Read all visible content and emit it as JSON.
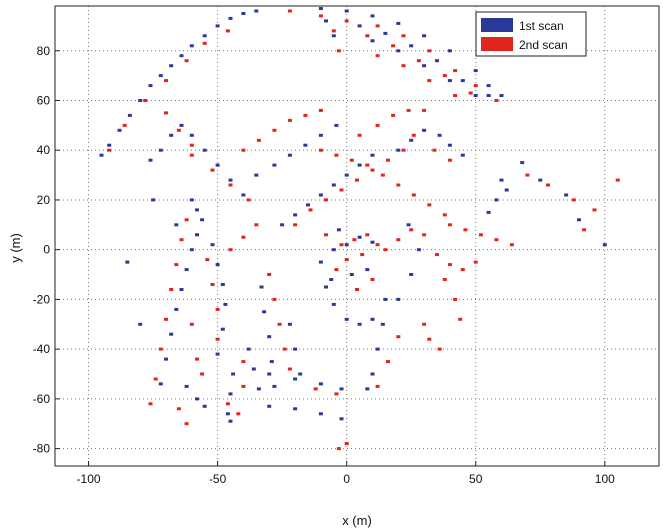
{
  "chart_data": {
    "type": "scatter",
    "title": "",
    "xlabel": "x (m)",
    "ylabel": "y (m)",
    "xlim": [
      -113,
      121
    ],
    "ylim": [
      -87,
      98
    ],
    "xticks": [
      -100,
      -50,
      0,
      50,
      100
    ],
    "yticks": [
      -80,
      -60,
      -40,
      -20,
      0,
      20,
      40,
      60,
      80
    ],
    "grid": true,
    "legend_position": "top-right",
    "colors": {
      "1st scan": "#2b3a9a",
      "2nd scan": "#e2241f"
    },
    "series": [
      {
        "name": "1st scan",
        "values": [
          [
            -95,
            38
          ],
          [
            -92,
            42
          ],
          [
            -88,
            48
          ],
          [
            -84,
            54
          ],
          [
            -80,
            60
          ],
          [
            -76,
            66
          ],
          [
            -72,
            70
          ],
          [
            -68,
            74
          ],
          [
            -64,
            78
          ],
          [
            -60,
            82
          ],
          [
            -55,
            86
          ],
          [
            -50,
            90
          ],
          [
            -45,
            93
          ],
          [
            -40,
            95
          ],
          [
            -35,
            96
          ],
          [
            -10,
            97
          ],
          [
            0,
            96
          ],
          [
            10,
            94
          ],
          [
            20,
            91
          ],
          [
            30,
            86
          ],
          [
            40,
            80
          ],
          [
            50,
            72
          ],
          [
            55,
            66
          ],
          [
            60,
            62
          ],
          [
            -8,
            92
          ],
          [
            5,
            90
          ],
          [
            15,
            87
          ],
          [
            25,
            82
          ],
          [
            35,
            76
          ],
          [
            45,
            68
          ],
          [
            55,
            62
          ],
          [
            -5,
            86
          ],
          [
            10,
            84
          ],
          [
            20,
            80
          ],
          [
            30,
            74
          ],
          [
            40,
            68
          ],
          [
            50,
            62
          ],
          [
            -76,
            36
          ],
          [
            -72,
            40
          ],
          [
            -68,
            46
          ],
          [
            -64,
            50
          ],
          [
            -60,
            46
          ],
          [
            -55,
            40
          ],
          [
            -50,
            34
          ],
          [
            -45,
            28
          ],
          [
            -40,
            22
          ],
          [
            -60,
            20
          ],
          [
            -58,
            16
          ],
          [
            -56,
            12
          ],
          [
            -58,
            6
          ],
          [
            -60,
            0
          ],
          [
            -62,
            -8
          ],
          [
            -64,
            -16
          ],
          [
            -66,
            -24
          ],
          [
            -68,
            -34
          ],
          [
            -70,
            -44
          ],
          [
            -72,
            -54
          ],
          [
            -52,
            2
          ],
          [
            -50,
            -6
          ],
          [
            -48,
            -14
          ],
          [
            -47,
            -22
          ],
          [
            -48,
            -32
          ],
          [
            -50,
            -42
          ],
          [
            -44,
            -50
          ],
          [
            -45,
            -58
          ],
          [
            -46,
            -66
          ],
          [
            -45,
            -69
          ],
          [
            -33,
            -15
          ],
          [
            -32,
            -25
          ],
          [
            -30,
            -35
          ],
          [
            -29,
            -45
          ],
          [
            -28,
            -55
          ],
          [
            -30,
            -50
          ],
          [
            -20,
            -52
          ],
          [
            -10,
            -54
          ],
          [
            -2,
            -56
          ],
          [
            -30,
            -63
          ],
          [
            -20,
            -64
          ],
          [
            -10,
            -66
          ],
          [
            -2,
            -68
          ],
          [
            -22,
            -30
          ],
          [
            -20,
            -40
          ],
          [
            -18,
            -50
          ],
          [
            -10,
            -5
          ],
          [
            -8,
            -15
          ],
          [
            -5,
            -22
          ],
          [
            0,
            -28
          ],
          [
            5,
            -30
          ],
          [
            10,
            -28
          ],
          [
            15,
            -20
          ],
          [
            -5,
            0
          ],
          [
            0,
            2
          ],
          [
            5,
            5
          ],
          [
            10,
            3
          ],
          [
            -3,
            8
          ],
          [
            2,
            -10
          ],
          [
            8,
            -8
          ],
          [
            -6,
            -12
          ],
          [
            20,
            -20
          ],
          [
            25,
            -10
          ],
          [
            28,
            0
          ],
          [
            24,
            10
          ],
          [
            14,
            -30
          ],
          [
            12,
            -40
          ],
          [
            10,
            -50
          ],
          [
            8,
            -56
          ],
          [
            -25,
            10
          ],
          [
            -20,
            14
          ],
          [
            -15,
            18
          ],
          [
            -10,
            22
          ],
          [
            -5,
            26
          ],
          [
            0,
            30
          ],
          [
            5,
            34
          ],
          [
            10,
            38
          ],
          [
            -35,
            30
          ],
          [
            -28,
            34
          ],
          [
            -22,
            38
          ],
          [
            -16,
            42
          ],
          [
            -10,
            46
          ],
          [
            -4,
            50
          ],
          [
            20,
            40
          ],
          [
            25,
            44
          ],
          [
            30,
            48
          ],
          [
            36,
            46
          ],
          [
            40,
            42
          ],
          [
            45,
            38
          ],
          [
            -38,
            -40
          ],
          [
            -36,
            -48
          ],
          [
            -34,
            -56
          ],
          [
            68,
            35
          ],
          [
            75,
            28
          ],
          [
            85,
            22
          ],
          [
            100,
            2
          ],
          [
            90,
            12
          ],
          [
            -75,
            20
          ],
          [
            -66,
            10
          ],
          [
            -85,
            -5
          ],
          [
            -80,
            -30
          ],
          [
            -62,
            -55
          ],
          [
            -58,
            -60
          ],
          [
            -55,
            -63
          ],
          [
            60,
            28
          ],
          [
            62,
            24
          ],
          [
            58,
            20
          ],
          [
            55,
            15
          ]
        ]
      },
      {
        "name": "2nd scan",
        "values": [
          [
            -92,
            40
          ],
          [
            -86,
            50
          ],
          [
            -78,
            60
          ],
          [
            -70,
            68
          ],
          [
            -62,
            76
          ],
          [
            -55,
            83
          ],
          [
            -46,
            88
          ],
          [
            -22,
            96
          ],
          [
            -10,
            94
          ],
          [
            0,
            92
          ],
          [
            12,
            90
          ],
          [
            22,
            86
          ],
          [
            32,
            80
          ],
          [
            42,
            72
          ],
          [
            50,
            66
          ],
          [
            58,
            60
          ],
          [
            -5,
            88
          ],
          [
            8,
            86
          ],
          [
            18,
            82
          ],
          [
            28,
            76
          ],
          [
            38,
            70
          ],
          [
            48,
            63
          ],
          [
            -3,
            80
          ],
          [
            12,
            78
          ],
          [
            22,
            74
          ],
          [
            32,
            68
          ],
          [
            42,
            62
          ],
          [
            -70,
            55
          ],
          [
            -65,
            48
          ],
          [
            -60,
            42
          ],
          [
            -60,
            38
          ],
          [
            -52,
            32
          ],
          [
            -45,
            26
          ],
          [
            -38,
            20
          ],
          [
            -62,
            12
          ],
          [
            -64,
            4
          ],
          [
            -66,
            -6
          ],
          [
            -68,
            -16
          ],
          [
            -70,
            -28
          ],
          [
            -72,
            -40
          ],
          [
            -74,
            -52
          ],
          [
            -76,
            -62
          ],
          [
            -54,
            -4
          ],
          [
            -52,
            -14
          ],
          [
            -50,
            -24
          ],
          [
            -50,
            -36
          ],
          [
            -40,
            -45
          ],
          [
            -40,
            -55
          ],
          [
            -30,
            -10
          ],
          [
            -28,
            -20
          ],
          [
            -26,
            -30
          ],
          [
            -24,
            -40
          ],
          [
            -22,
            -48
          ],
          [
            -12,
            -56
          ],
          [
            -4,
            -58
          ],
          [
            0,
            -78
          ],
          [
            -3,
            -80
          ],
          [
            -2,
            2
          ],
          [
            3,
            4
          ],
          [
            8,
            6
          ],
          [
            12,
            2
          ],
          [
            -8,
            6
          ],
          [
            0,
            -4
          ],
          [
            6,
            -2
          ],
          [
            -4,
            -8
          ],
          [
            4,
            -16
          ],
          [
            10,
            -12
          ],
          [
            15,
            0
          ],
          [
            20,
            4
          ],
          [
            25,
            8
          ],
          [
            30,
            6
          ],
          [
            35,
            -2
          ],
          [
            40,
            -6
          ],
          [
            45,
            -8
          ],
          [
            50,
            -5
          ],
          [
            38,
            -12
          ],
          [
            42,
            -20
          ],
          [
            44,
            -28
          ],
          [
            20,
            -35
          ],
          [
            16,
            -45
          ],
          [
            12,
            -55
          ],
          [
            -20,
            10
          ],
          [
            -14,
            16
          ],
          [
            -8,
            20
          ],
          [
            -2,
            24
          ],
          [
            4,
            28
          ],
          [
            10,
            32
          ],
          [
            16,
            36
          ],
          [
            22,
            40
          ],
          [
            -40,
            40
          ],
          [
            -34,
            44
          ],
          [
            -28,
            48
          ],
          [
            -22,
            52
          ],
          [
            -16,
            54
          ],
          [
            -10,
            56
          ],
          [
            5,
            46
          ],
          [
            12,
            50
          ],
          [
            18,
            54
          ],
          [
            24,
            56
          ],
          [
            30,
            56
          ],
          [
            26,
            46
          ],
          [
            34,
            40
          ],
          [
            40,
            36
          ],
          [
            -10,
            40
          ],
          [
            -4,
            38
          ],
          [
            2,
            36
          ],
          [
            8,
            34
          ],
          [
            14,
            30
          ],
          [
            20,
            26
          ],
          [
            26,
            22
          ],
          [
            32,
            18
          ],
          [
            38,
            14
          ],
          [
            40,
            10
          ],
          [
            46,
            8
          ],
          [
            52,
            6
          ],
          [
            58,
            4
          ],
          [
            64,
            2
          ],
          [
            70,
            30
          ],
          [
            78,
            26
          ],
          [
            88,
            20
          ],
          [
            96,
            16
          ],
          [
            105,
            28
          ],
          [
            92,
            8
          ],
          [
            -58,
            -44
          ],
          [
            -56,
            -50
          ],
          [
            -60,
            -30
          ],
          [
            -46,
            -62
          ],
          [
            -42,
            -66
          ],
          [
            -35,
            10
          ],
          [
            -40,
            5
          ],
          [
            -45,
            0
          ],
          [
            -65,
            -64
          ],
          [
            -62,
            -70
          ],
          [
            30,
            -30
          ],
          [
            32,
            -36
          ],
          [
            36,
            -40
          ]
        ]
      }
    ]
  }
}
